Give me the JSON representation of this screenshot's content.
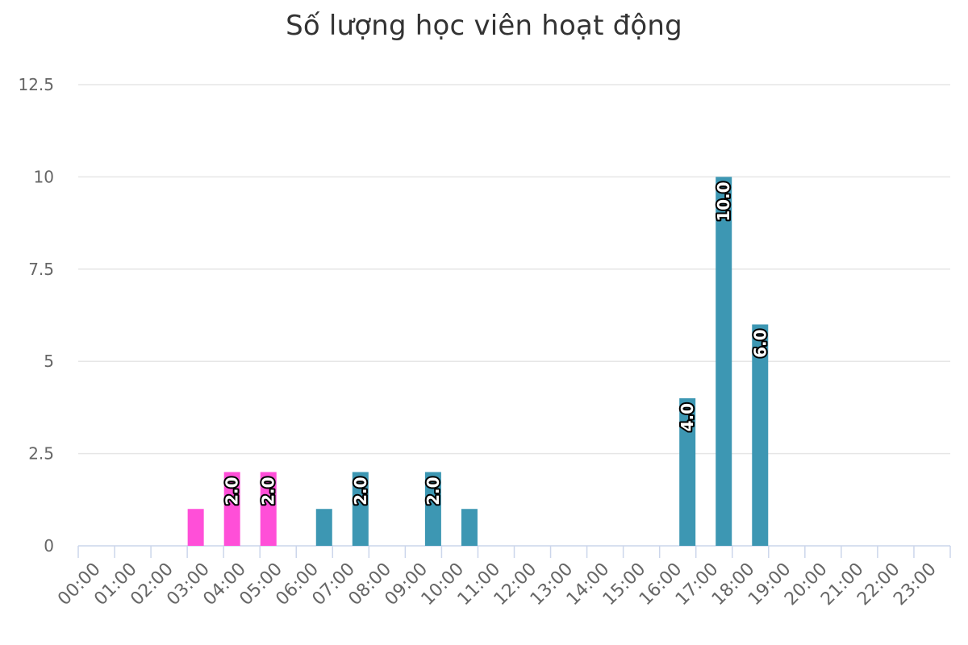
{
  "chart_data": {
    "type": "bar",
    "title": "Số lượng học viên hoạt động",
    "xlabel": "",
    "ylabel": "",
    "ylim": [
      0,
      12.5
    ],
    "yticks": [
      "0",
      "2.5",
      "5",
      "7.5",
      "10",
      "12.5"
    ],
    "categories": [
      "00:00",
      "01:00",
      "02:00",
      "03:00",
      "04:00",
      "05:00",
      "06:00",
      "07:00",
      "08:00",
      "09:00",
      "10:00",
      "11:00",
      "12:00",
      "13:00",
      "14:00",
      "15:00",
      "16:00",
      "17:00",
      "18:00",
      "19:00",
      "20:00",
      "21:00",
      "22:00",
      "23:00"
    ],
    "series": [
      {
        "color": "#ff4fd8",
        "values": [
          0,
          0,
          0,
          1,
          2,
          2,
          0,
          0,
          0,
          0,
          0,
          0,
          0,
          0,
          0,
          0,
          0,
          0,
          0,
          0,
          0,
          0,
          0,
          0
        ]
      },
      {
        "color": "#3d97b3",
        "values": [
          0,
          0,
          0,
          0,
          0,
          0,
          1,
          2,
          0,
          2,
          1,
          0,
          0,
          0,
          0,
          0,
          4,
          10,
          6,
          0,
          0,
          0,
          0,
          0
        ]
      }
    ],
    "data_labels": [
      {
        "series": 0,
        "category": "04:00",
        "text": "2.0"
      },
      {
        "series": 0,
        "category": "05:00",
        "text": "2.0"
      },
      {
        "series": 1,
        "category": "07:00",
        "text": "2.0"
      },
      {
        "series": 1,
        "category": "09:00",
        "text": "2.0"
      },
      {
        "series": 1,
        "category": "16:00",
        "text": "4.0"
      },
      {
        "series": 1,
        "category": "17:00",
        "text": "10.0"
      },
      {
        "series": 1,
        "category": "18:00",
        "text": "6.0"
      }
    ],
    "grid": true,
    "legend": "none"
  }
}
